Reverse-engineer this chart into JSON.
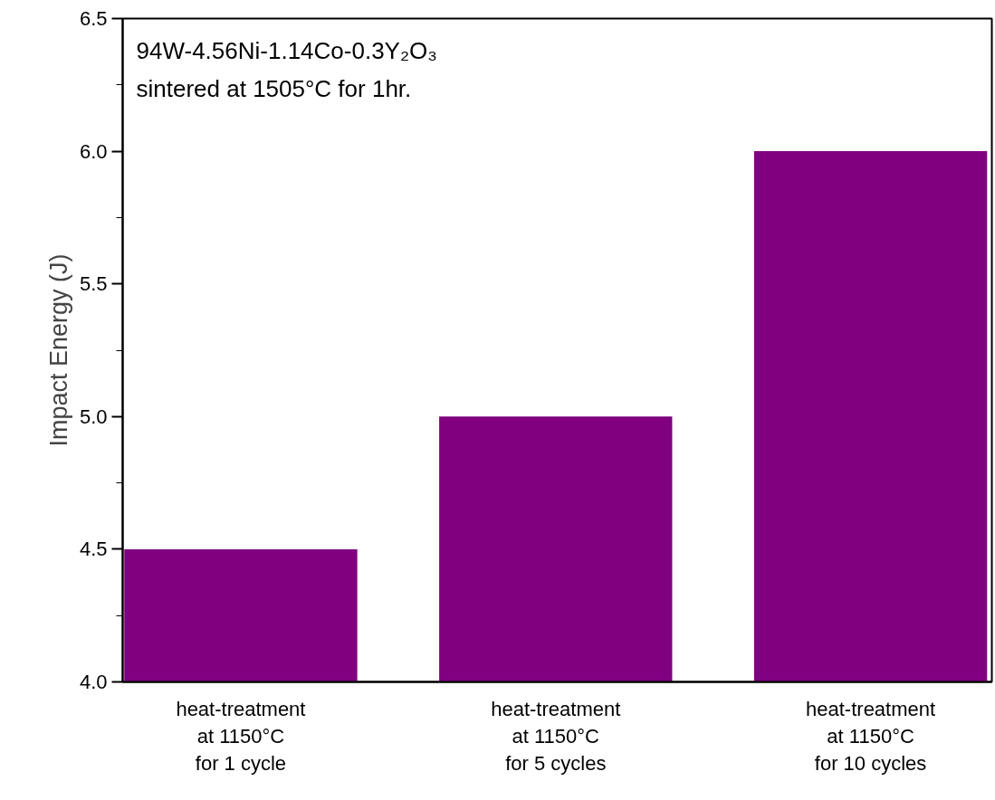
{
  "chart_data": {
    "type": "bar",
    "ylabel": "Impact Energy (J)",
    "categories": [
      "heat-treatment\nat 1150°C\nfor 1 cycle",
      "heat-treatment\nat 1150°C\nfor 5 cycles",
      "heat-treatment\nat 1150°C\nfor 10 cycles"
    ],
    "values": [
      4.5,
      5.0,
      6.0
    ],
    "color": "#800080",
    "ylim": [
      4.0,
      6.5
    ],
    "yticks": [
      {
        "value": 4,
        "label": "4.0"
      },
      4.5,
      {
        "value": 5,
        "label": "5.0"
      },
      5.5,
      {
        "value": 6,
        "label": "6.0"
      },
      6.5
    ],
    "annotations": [
      "94W-4.56Ni-1.14Co-0.3Y₂O₃",
      "sintered at 1505°C for 1hr."
    ],
    "grid": false
  }
}
